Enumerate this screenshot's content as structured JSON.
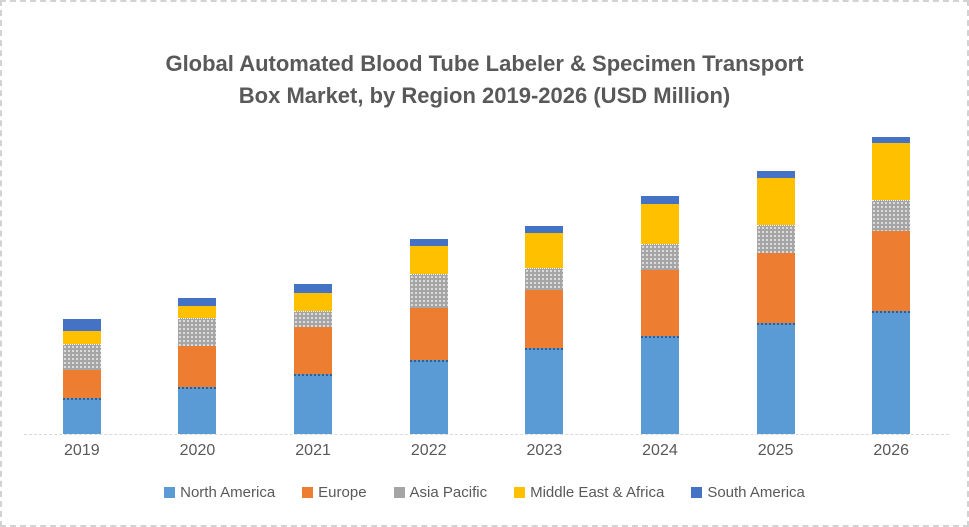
{
  "window": {
    "background_color": "#ffffff",
    "border_color": "#d2d2d2",
    "text_color": "#595959"
  },
  "chart_data": {
    "type": "bar",
    "stacked": true,
    "title": "Global Automated Blood Tube Labeler & Specimen Transport Box Market, by Region 2019-2026 (USD Million)",
    "title_lines": [
      "Global Automated Blood Tube Labeler & Specimen Transport",
      "Box Market, by Region 2019-2026 (USD Million)"
    ],
    "xlabel": "",
    "ylabel": "",
    "categories": [
      "2019",
      "2020",
      "2021",
      "2022",
      "2023",
      "2024",
      "2025",
      "2026"
    ],
    "series": [
      {
        "name": "North America",
        "color": "#5B9BD5",
        "values": [
          36,
          47,
          60,
          74,
          86,
          98,
          111,
          123
        ]
      },
      {
        "name": "Europe",
        "color": "#ED7D31",
        "values": [
          28,
          41,
          47,
          52,
          58,
          66,
          70,
          80
        ]
      },
      {
        "name": "Asia Pacific",
        "color": "#A5A5A5",
        "values": [
          26,
          28,
          16,
          34,
          22,
          26,
          28,
          31
        ]
      },
      {
        "name": "Middle East & Africa",
        "color": "#FFC000",
        "values": [
          13,
          12,
          18,
          28,
          35,
          40,
          47,
          57
        ]
      },
      {
        "name": "South America",
        "color": "#4472C4",
        "values": [
          12,
          8,
          9,
          7,
          7,
          8,
          7,
          6
        ]
      }
    ],
    "stack_totals": [
      115,
      136,
      150,
      195,
      208,
      238,
      263,
      297
    ],
    "ylim": [
      0,
      303
    ],
    "y_axis_ticks_visible": false,
    "note": "No y-axis tick labels visible; values are relative heights read from the plot",
    "grid": false,
    "legend_position": "bottom"
  }
}
